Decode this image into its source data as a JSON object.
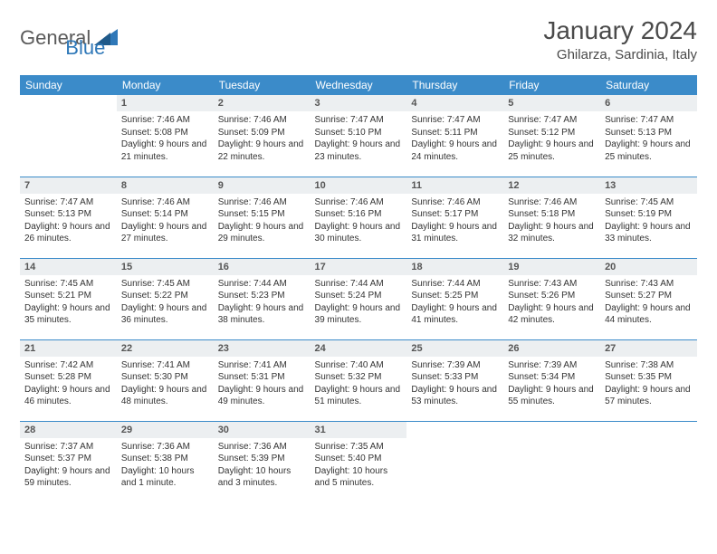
{
  "logo": {
    "general": "General",
    "blue": "Blue"
  },
  "title": "January 2024",
  "location": "Ghilarza, Sardinia, Italy",
  "colors": {
    "header_bg": "#3b8bc9",
    "header_text": "#ffffff",
    "daynum_bg": "#eceff1",
    "border": "#3b8bc9",
    "logo_gray": "#5a5a5a",
    "logo_blue": "#2f78b8"
  },
  "day_headers": [
    "Sunday",
    "Monday",
    "Tuesday",
    "Wednesday",
    "Thursday",
    "Friday",
    "Saturday"
  ],
  "weeks": [
    [
      {
        "n": "",
        "sr": "",
        "ss": "",
        "dl": ""
      },
      {
        "n": "1",
        "sr": "Sunrise: 7:46 AM",
        "ss": "Sunset: 5:08 PM",
        "dl": "Daylight: 9 hours and 21 minutes."
      },
      {
        "n": "2",
        "sr": "Sunrise: 7:46 AM",
        "ss": "Sunset: 5:09 PM",
        "dl": "Daylight: 9 hours and 22 minutes."
      },
      {
        "n": "3",
        "sr": "Sunrise: 7:47 AM",
        "ss": "Sunset: 5:10 PM",
        "dl": "Daylight: 9 hours and 23 minutes."
      },
      {
        "n": "4",
        "sr": "Sunrise: 7:47 AM",
        "ss": "Sunset: 5:11 PM",
        "dl": "Daylight: 9 hours and 24 minutes."
      },
      {
        "n": "5",
        "sr": "Sunrise: 7:47 AM",
        "ss": "Sunset: 5:12 PM",
        "dl": "Daylight: 9 hours and 25 minutes."
      },
      {
        "n": "6",
        "sr": "Sunrise: 7:47 AM",
        "ss": "Sunset: 5:13 PM",
        "dl": "Daylight: 9 hours and 25 minutes."
      }
    ],
    [
      {
        "n": "7",
        "sr": "Sunrise: 7:47 AM",
        "ss": "Sunset: 5:13 PM",
        "dl": "Daylight: 9 hours and 26 minutes."
      },
      {
        "n": "8",
        "sr": "Sunrise: 7:46 AM",
        "ss": "Sunset: 5:14 PM",
        "dl": "Daylight: 9 hours and 27 minutes."
      },
      {
        "n": "9",
        "sr": "Sunrise: 7:46 AM",
        "ss": "Sunset: 5:15 PM",
        "dl": "Daylight: 9 hours and 29 minutes."
      },
      {
        "n": "10",
        "sr": "Sunrise: 7:46 AM",
        "ss": "Sunset: 5:16 PM",
        "dl": "Daylight: 9 hours and 30 minutes."
      },
      {
        "n": "11",
        "sr": "Sunrise: 7:46 AM",
        "ss": "Sunset: 5:17 PM",
        "dl": "Daylight: 9 hours and 31 minutes."
      },
      {
        "n": "12",
        "sr": "Sunrise: 7:46 AM",
        "ss": "Sunset: 5:18 PM",
        "dl": "Daylight: 9 hours and 32 minutes."
      },
      {
        "n": "13",
        "sr": "Sunrise: 7:45 AM",
        "ss": "Sunset: 5:19 PM",
        "dl": "Daylight: 9 hours and 33 minutes."
      }
    ],
    [
      {
        "n": "14",
        "sr": "Sunrise: 7:45 AM",
        "ss": "Sunset: 5:21 PM",
        "dl": "Daylight: 9 hours and 35 minutes."
      },
      {
        "n": "15",
        "sr": "Sunrise: 7:45 AM",
        "ss": "Sunset: 5:22 PM",
        "dl": "Daylight: 9 hours and 36 minutes."
      },
      {
        "n": "16",
        "sr": "Sunrise: 7:44 AM",
        "ss": "Sunset: 5:23 PM",
        "dl": "Daylight: 9 hours and 38 minutes."
      },
      {
        "n": "17",
        "sr": "Sunrise: 7:44 AM",
        "ss": "Sunset: 5:24 PM",
        "dl": "Daylight: 9 hours and 39 minutes."
      },
      {
        "n": "18",
        "sr": "Sunrise: 7:44 AM",
        "ss": "Sunset: 5:25 PM",
        "dl": "Daylight: 9 hours and 41 minutes."
      },
      {
        "n": "19",
        "sr": "Sunrise: 7:43 AM",
        "ss": "Sunset: 5:26 PM",
        "dl": "Daylight: 9 hours and 42 minutes."
      },
      {
        "n": "20",
        "sr": "Sunrise: 7:43 AM",
        "ss": "Sunset: 5:27 PM",
        "dl": "Daylight: 9 hours and 44 minutes."
      }
    ],
    [
      {
        "n": "21",
        "sr": "Sunrise: 7:42 AM",
        "ss": "Sunset: 5:28 PM",
        "dl": "Daylight: 9 hours and 46 minutes."
      },
      {
        "n": "22",
        "sr": "Sunrise: 7:41 AM",
        "ss": "Sunset: 5:30 PM",
        "dl": "Daylight: 9 hours and 48 minutes."
      },
      {
        "n": "23",
        "sr": "Sunrise: 7:41 AM",
        "ss": "Sunset: 5:31 PM",
        "dl": "Daylight: 9 hours and 49 minutes."
      },
      {
        "n": "24",
        "sr": "Sunrise: 7:40 AM",
        "ss": "Sunset: 5:32 PM",
        "dl": "Daylight: 9 hours and 51 minutes."
      },
      {
        "n": "25",
        "sr": "Sunrise: 7:39 AM",
        "ss": "Sunset: 5:33 PM",
        "dl": "Daylight: 9 hours and 53 minutes."
      },
      {
        "n": "26",
        "sr": "Sunrise: 7:39 AM",
        "ss": "Sunset: 5:34 PM",
        "dl": "Daylight: 9 hours and 55 minutes."
      },
      {
        "n": "27",
        "sr": "Sunrise: 7:38 AM",
        "ss": "Sunset: 5:35 PM",
        "dl": "Daylight: 9 hours and 57 minutes."
      }
    ],
    [
      {
        "n": "28",
        "sr": "Sunrise: 7:37 AM",
        "ss": "Sunset: 5:37 PM",
        "dl": "Daylight: 9 hours and 59 minutes."
      },
      {
        "n": "29",
        "sr": "Sunrise: 7:36 AM",
        "ss": "Sunset: 5:38 PM",
        "dl": "Daylight: 10 hours and 1 minute."
      },
      {
        "n": "30",
        "sr": "Sunrise: 7:36 AM",
        "ss": "Sunset: 5:39 PM",
        "dl": "Daylight: 10 hours and 3 minutes."
      },
      {
        "n": "31",
        "sr": "Sunrise: 7:35 AM",
        "ss": "Sunset: 5:40 PM",
        "dl": "Daylight: 10 hours and 5 minutes."
      },
      {
        "n": "",
        "sr": "",
        "ss": "",
        "dl": ""
      },
      {
        "n": "",
        "sr": "",
        "ss": "",
        "dl": ""
      },
      {
        "n": "",
        "sr": "",
        "ss": "",
        "dl": ""
      }
    ]
  ]
}
